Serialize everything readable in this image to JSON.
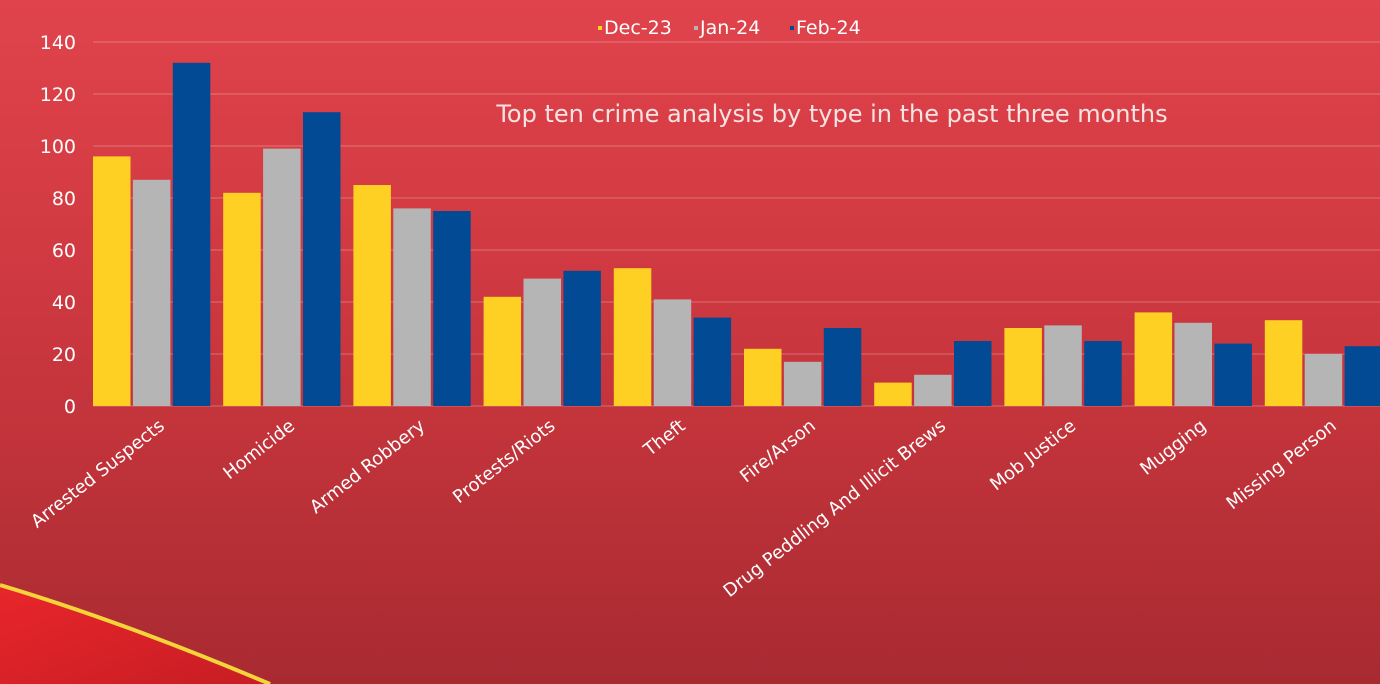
{
  "chart_data": {
    "type": "bar",
    "title": "Top ten crime analysis by type in the past three months",
    "xlabel": "",
    "ylabel": "",
    "categories": [
      "Arrested Suspects",
      "Homicide",
      "Armed Robbery",
      "Protests/Riots",
      "Theft",
      "Fire/Arson",
      "Drug Peddling And Illicit Brews",
      "Mob Justice",
      "Mugging",
      "Missing Person"
    ],
    "series": [
      {
        "name": "Dec-23",
        "color": "#ffd024",
        "values": [
          96,
          82,
          85,
          42,
          53,
          22,
          9,
          30,
          36,
          33
        ]
      },
      {
        "name": "Jan-24",
        "color": "#b5b5b5",
        "values": [
          87,
          99,
          76,
          49,
          41,
          17,
          12,
          31,
          32,
          20
        ]
      },
      {
        "name": "Feb-24",
        "color": "#024a94",
        "values": [
          132,
          113,
          75,
          52,
          34,
          30,
          25,
          25,
          24,
          23
        ]
      }
    ],
    "ylim": [
      0,
      140
    ],
    "yticks": [
      0,
      20,
      40,
      60,
      80,
      100,
      120,
      140
    ],
    "grid": true,
    "legend_position": "top-center"
  }
}
